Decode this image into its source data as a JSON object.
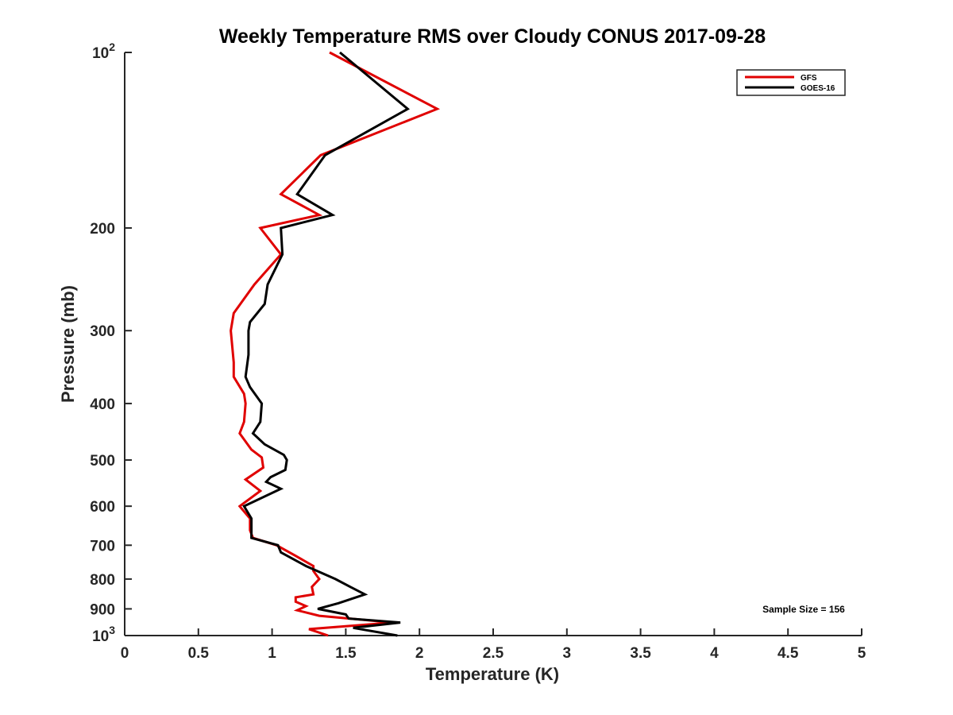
{
  "chart_data": {
    "type": "line",
    "title": "Weekly Temperature RMS over Cloudy CONUS 2017-09-28",
    "xlabel": "Temperature (K)",
    "ylabel": "Pressure (mb)",
    "xlim": [
      0,
      5
    ],
    "ylim": [
      100,
      1000
    ],
    "y_scale": "log",
    "y_reversed": true,
    "grid": false,
    "legend_position": "top-right",
    "x_ticks": [
      {
        "value": 0,
        "label": "0"
      },
      {
        "value": 0.5,
        "label": "0.5"
      },
      {
        "value": 1,
        "label": "1"
      },
      {
        "value": 1.5,
        "label": "1.5"
      },
      {
        "value": 2,
        "label": "2"
      },
      {
        "value": 2.5,
        "label": "2.5"
      },
      {
        "value": 3,
        "label": "3"
      },
      {
        "value": 3.5,
        "label": "3.5"
      },
      {
        "value": 4,
        "label": "4"
      },
      {
        "value": 4.5,
        "label": "4.5"
      },
      {
        "value": 5,
        "label": "5"
      }
    ],
    "y_ticks": [
      {
        "value": 100,
        "label": "10",
        "sup": "2"
      },
      {
        "value": 200,
        "label": "200"
      },
      {
        "value": 300,
        "label": "300"
      },
      {
        "value": 400,
        "label": "400"
      },
      {
        "value": 500,
        "label": "500"
      },
      {
        "value": 600,
        "label": "600"
      },
      {
        "value": 700,
        "label": "700"
      },
      {
        "value": 800,
        "label": "800"
      },
      {
        "value": 900,
        "label": "900"
      },
      {
        "value": 1000,
        "label": "10",
        "sup": "3"
      }
    ],
    "series": [
      {
        "name": "GFS",
        "color": "#e00000",
        "points": [
          [
            1.39,
            100
          ],
          [
            2.12,
            125
          ],
          [
            1.33,
            150
          ],
          [
            1.06,
            175
          ],
          [
            1.32,
            190
          ],
          [
            0.92,
            200
          ],
          [
            1.06,
            222
          ],
          [
            0.88,
            250
          ],
          [
            0.74,
            280
          ],
          [
            0.72,
            300
          ],
          [
            0.74,
            340
          ],
          [
            0.74,
            360
          ],
          [
            0.81,
            385
          ],
          [
            0.82,
            400
          ],
          [
            0.81,
            430
          ],
          [
            0.78,
            450
          ],
          [
            0.86,
            480
          ],
          [
            0.93,
            495
          ],
          [
            0.94,
            515
          ],
          [
            0.82,
            540
          ],
          [
            0.92,
            565
          ],
          [
            0.78,
            600
          ],
          [
            0.85,
            630
          ],
          [
            0.85,
            660
          ],
          [
            0.87,
            680
          ],
          [
            1.03,
            700
          ],
          [
            1.16,
            730
          ],
          [
            1.28,
            760
          ],
          [
            1.28,
            775
          ],
          [
            1.32,
            800
          ],
          [
            1.27,
            825
          ],
          [
            1.28,
            850
          ],
          [
            1.16,
            860
          ],
          [
            1.16,
            875
          ],
          [
            1.23,
            890
          ],
          [
            1.17,
            905
          ],
          [
            1.32,
            925
          ],
          [
            1.82,
            950
          ],
          [
            1.25,
            975
          ],
          [
            1.38,
            1000
          ]
        ]
      },
      {
        "name": "GOES-16",
        "color": "#000000",
        "points": [
          [
            1.46,
            100
          ],
          [
            1.92,
            125
          ],
          [
            1.36,
            150
          ],
          [
            1.17,
            175
          ],
          [
            1.41,
            190
          ],
          [
            1.06,
            200
          ],
          [
            1.07,
            222
          ],
          [
            0.97,
            250
          ],
          [
            0.95,
            270
          ],
          [
            0.85,
            290
          ],
          [
            0.84,
            300
          ],
          [
            0.84,
            330
          ],
          [
            0.82,
            360
          ],
          [
            0.85,
            375
          ],
          [
            0.93,
            400
          ],
          [
            0.92,
            430
          ],
          [
            0.87,
            450
          ],
          [
            0.95,
            470
          ],
          [
            1.08,
            490
          ],
          [
            1.1,
            500
          ],
          [
            1.09,
            520
          ],
          [
            0.99,
            535
          ],
          [
            0.96,
            545
          ],
          [
            1.06,
            560
          ],
          [
            0.81,
            600
          ],
          [
            0.86,
            630
          ],
          [
            0.86,
            660
          ],
          [
            0.86,
            680
          ],
          [
            1.04,
            700
          ],
          [
            1.06,
            720
          ],
          [
            1.23,
            760
          ],
          [
            1.43,
            800
          ],
          [
            1.53,
            825
          ],
          [
            1.63,
            850
          ],
          [
            1.45,
            880
          ],
          [
            1.31,
            900
          ],
          [
            1.5,
            920
          ],
          [
            1.52,
            935
          ],
          [
            1.87,
            950
          ],
          [
            1.55,
            970
          ],
          [
            1.85,
            1000
          ]
        ]
      }
    ],
    "annotations": [
      {
        "text": "Sample Size = 156",
        "position": "bottom-right"
      }
    ]
  }
}
